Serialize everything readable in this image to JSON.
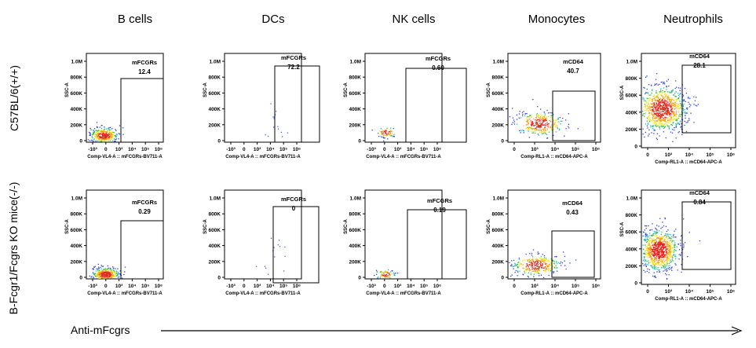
{
  "columns": [
    "B cells",
    "DCs",
    "NK cells",
    "Monocytes",
    "Neutrophils"
  ],
  "rows": [
    "C57BL/6(+/+)",
    "B-Fcgr1/Fcgrs KO mice(-/-)"
  ],
  "x_axis_label": "Anti-mFcgrs",
  "chart_data": [
    {
      "type": "scatter",
      "row": 0,
      "col": 0,
      "gate_label": "mFCGRs",
      "gate_value": "12.4",
      "xlabel": "Comp-VL4-A :: mFCGRs-BV711-A",
      "ylabel": "SSC-A",
      "x_ticks": [
        "-10³",
        "0",
        "10³",
        "10⁴",
        "10⁵",
        "10⁶"
      ],
      "y_ticks": [
        "0",
        "200K",
        "400K",
        "600K",
        "800K",
        "1.0M"
      ],
      "density": "high"
    },
    {
      "type": "scatter",
      "row": 0,
      "col": 1,
      "gate_label": "mFCGRs",
      "gate_value": "72.2",
      "xlabel": "Comp-VL4-A :: mFCGRs-BV711-A",
      "ylabel": "SSC-A",
      "x_ticks": [
        "-10³",
        "0",
        "10³",
        "10⁴",
        "10⁵",
        "10⁶"
      ],
      "y_ticks": [
        "0",
        "200K",
        "400K",
        "600K",
        "800K",
        "1.0M"
      ],
      "density": "sparse"
    },
    {
      "type": "scatter",
      "row": 0,
      "col": 2,
      "gate_label": "mFCGRs",
      "gate_value": "0.60",
      "xlabel": "Comp-VL4-A :: mFCGRs-BV711-A",
      "ylabel": "SSC-A",
      "x_ticks": [
        "-10³",
        "0",
        "10³",
        "10⁴",
        "10⁵",
        "10⁶"
      ],
      "y_ticks": [
        "0",
        "200K",
        "400K",
        "600K",
        "800K",
        "1.0M"
      ],
      "density": "low"
    },
    {
      "type": "scatter",
      "row": 0,
      "col": 3,
      "gate_label": "mCD64",
      "gate_value": "40.7",
      "xlabel": "Comp-RL1-A :: mCD64-APC-A",
      "ylabel": "SSC-A",
      "x_ticks": [
        "0",
        "10³",
        "10⁴",
        "10⁵",
        "10⁶"
      ],
      "y_ticks": [
        "0",
        "200K",
        "400K",
        "600K",
        "800K",
        "1.0M"
      ],
      "density": "medium"
    },
    {
      "type": "scatter",
      "row": 0,
      "col": 4,
      "gate_label": "mCD64",
      "gate_value": "28.1",
      "xlabel": "Comp-RL1-A :: mCD64-APC-A",
      "ylabel": "SSC-A",
      "x_ticks": [
        "0",
        "10³",
        "10⁴",
        "10⁵",
        "10⁶"
      ],
      "y_ticks": [
        "0",
        "200K",
        "400K",
        "600K",
        "800K",
        "1.0M"
      ],
      "density": "very-high"
    },
    {
      "type": "scatter",
      "row": 1,
      "col": 0,
      "gate_label": "mFCGRs",
      "gate_value": "0.29",
      "xlabel": "Comp-VL4-A :: mFCGRs-BV711-A",
      "ylabel": "SSC-A",
      "x_ticks": [
        "-10³",
        "0",
        "10³",
        "10⁴",
        "10⁵",
        "10⁶"
      ],
      "y_ticks": [
        "0",
        "200K",
        "400K",
        "600K",
        "800K",
        "1.0M"
      ],
      "density": "high"
    },
    {
      "type": "scatter",
      "row": 1,
      "col": 1,
      "gate_label": "mFCGRs",
      "gate_value": "0",
      "xlabel": "Comp-VL4-A :: mFCGRs-BV711-A",
      "ylabel": "SSC-A",
      "x_ticks": [
        "-10³",
        "0",
        "10³",
        "10⁴",
        "10⁵",
        "10⁶"
      ],
      "y_ticks": [
        "0",
        "200K",
        "400K",
        "600K",
        "800K",
        "1.0M"
      ],
      "density": "sparse"
    },
    {
      "type": "scatter",
      "row": 1,
      "col": 2,
      "gate_label": "mFCGRs",
      "gate_value": "0.19",
      "xlabel": "Comp-VL4-A :: mFCGRs-BV711-A",
      "ylabel": "SSC-A",
      "x_ticks": [
        "-10³",
        "0",
        "10³",
        "10⁴",
        "10⁵",
        "10⁶"
      ],
      "y_ticks": [
        "0",
        "200K",
        "400K",
        "600K",
        "800K",
        "1.0M"
      ],
      "density": "low"
    },
    {
      "type": "scatter",
      "row": 1,
      "col": 3,
      "gate_label": "mCD64",
      "gate_value": "0.43",
      "xlabel": "Comp-RL1-A :: mCD64-APC-A",
      "ylabel": "SSC-A",
      "x_ticks": [
        "0",
        "10³",
        "10⁴",
        "10⁵",
        "10⁶"
      ],
      "y_ticks": [
        "0",
        "200K",
        "400K",
        "600K",
        "800K",
        "1.0M"
      ],
      "density": "medium"
    },
    {
      "type": "scatter",
      "row": 1,
      "col": 4,
      "gate_label": "mCD64",
      "gate_value": "0.84",
      "xlabel": "Comp-RL1-A :: mCD64-APC-A",
      "ylabel": "SSC-A",
      "x_ticks": [
        "0",
        "10³",
        "10⁴",
        "10⁵",
        "10⁶"
      ],
      "y_ticks": [
        "0",
        "200K",
        "400K",
        "600K",
        "800K",
        "1.0M"
      ],
      "density": "very-high"
    }
  ]
}
